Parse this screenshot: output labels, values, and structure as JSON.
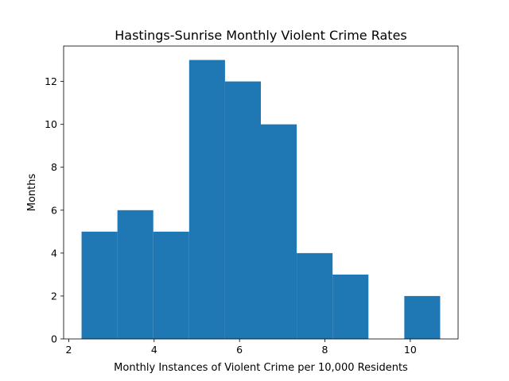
{
  "chart_data": {
    "type": "bar",
    "title": "Hastings-Sunrise Monthly Violent Crime Rates",
    "xlabel": "Monthly Instances of Violent Crime per 10,000 Residents",
    "ylabel": "Months",
    "bin_edges": [
      2.3,
      3.14,
      3.98,
      4.82,
      5.66,
      6.5,
      7.34,
      8.18,
      9.02,
      9.86,
      10.7
    ],
    "values": [
      5,
      6,
      5,
      13,
      12,
      10,
      4,
      3,
      0,
      2
    ],
    "xlim": [
      1.88,
      11.12
    ],
    "ylim": [
      0,
      13.65
    ],
    "xticks": [
      2,
      4,
      6,
      8,
      10
    ],
    "yticks": [
      0,
      2,
      4,
      6,
      8,
      10,
      12
    ],
    "bar_color": "#1f77b4",
    "grid": false,
    "legend": "none"
  }
}
